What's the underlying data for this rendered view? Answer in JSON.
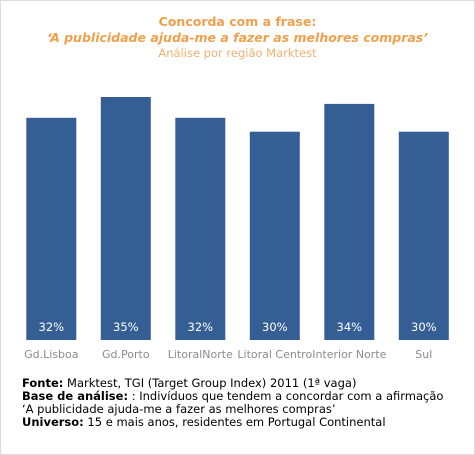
{
  "chart_data": {
    "type": "bar",
    "title": "Concorda com a frase:",
    "subtitle": "‘A publicidade ajuda-me a fazer as melhores compras’",
    "subtitle2": "Análise por região Marktest",
    "categories": [
      "Gd.Lisboa",
      "Gd.Porto",
      "LitoralNorte",
      "Litoral Centro",
      "Interior Norte",
      "Sul"
    ],
    "values": [
      32,
      35,
      32,
      30,
      34,
      30
    ],
    "value_labels": [
      "32%",
      "35%",
      "32%",
      "30%",
      "34%",
      "30%"
    ],
    "unit": "%",
    "ylim": [
      0,
      35
    ],
    "grid": false,
    "legend": "none",
    "bar_color": "#355e95",
    "label_color": "#ffffff",
    "category_color": "#8c8c8c"
  },
  "footer": {
    "fonte_label": "Fonte:",
    "fonte_text": " Marktest, TGI (Target Group Index) 2011 (1ª vaga)",
    "base_label": "Base de análise:",
    "base_text": " : Indivíduos que tendem a concordar com a afirmação ‘A publicidade ajuda-me a fazer as melhores compras’",
    "universo_label": "Universo:",
    "universo_text": " 15 e mais anos, residentes em Portugal Continental"
  }
}
